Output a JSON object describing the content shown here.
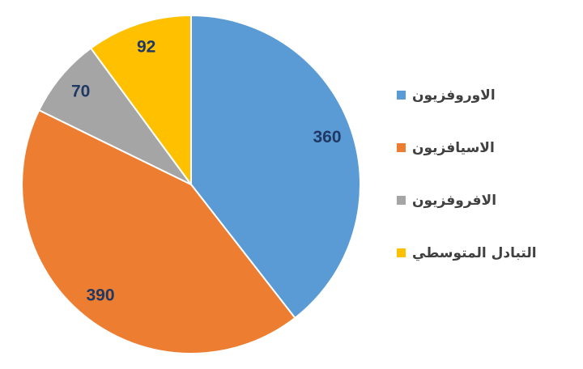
{
  "chart_data": {
    "type": "pie",
    "categories": [
      "الاوروفزيون",
      "الاسيافزيون",
      "الافروفزيون",
      "التبادل المتوسطي"
    ],
    "values": [
      360,
      390,
      70,
      92
    ],
    "colors": [
      "#5b9bd5",
      "#ed7d31",
      "#a5a5a5",
      "#ffc000"
    ],
    "legend": "right"
  }
}
